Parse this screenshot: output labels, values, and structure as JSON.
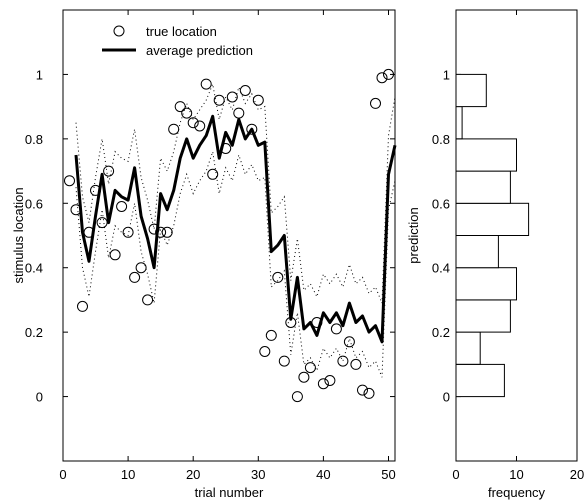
{
  "chart_data": [
    {
      "type": "line",
      "xlabel": "trial number",
      "ylabel": "stimulus location",
      "xlim": [
        0,
        51
      ],
      "ylim": [
        -0.2,
        1.2
      ],
      "xticks": [
        0,
        10,
        20,
        30,
        40,
        50
      ],
      "yticks": [
        0,
        0.2,
        0.4,
        0.6,
        0.8,
        1
      ],
      "grid": false,
      "legend_position": "top-left",
      "series": [
        {
          "name": "true location",
          "style": "open-circle",
          "x": [
            1,
            2,
            3,
            4,
            5,
            6,
            7,
            8,
            9,
            10,
            11,
            12,
            13,
            14,
            15,
            16,
            17,
            18,
            19,
            20,
            21,
            22,
            23,
            24,
            25,
            26,
            27,
            28,
            29,
            30,
            31,
            32,
            33,
            34,
            35,
            36,
            37,
            38,
            39,
            40,
            41,
            42,
            43,
            44,
            45,
            46,
            47,
            48,
            49,
            50
          ],
          "y": [
            0.67,
            0.58,
            0.28,
            0.51,
            0.64,
            0.54,
            0.7,
            0.44,
            0.59,
            0.51,
            0.37,
            0.4,
            0.3,
            0.52,
            0.51,
            0.51,
            0.83,
            0.9,
            0.88,
            0.85,
            0.84,
            0.97,
            0.69,
            0.92,
            0.77,
            0.93,
            0.88,
            0.95,
            0.83,
            0.92,
            0.14,
            0.19,
            0.37,
            0.11,
            0.23,
            0.0,
            0.06,
            0.09,
            0.23,
            0.04,
            0.05,
            0.21,
            0.11,
            0.17,
            0.1,
            0.02,
            0.01,
            0.91,
            0.99,
            1.0
          ]
        },
        {
          "name": "average prediction",
          "style": "thick-line",
          "x": [
            2,
            3,
            4,
            5,
            6,
            7,
            8,
            9,
            10,
            11,
            12,
            13,
            14,
            15,
            16,
            17,
            18,
            19,
            20,
            21,
            22,
            23,
            24,
            25,
            26,
            27,
            28,
            29,
            30,
            31,
            32,
            33,
            34,
            35,
            36,
            37,
            38,
            39,
            40,
            41,
            42,
            43,
            44,
            45,
            46,
            47,
            48,
            49,
            50,
            51
          ],
          "y": [
            0.75,
            0.51,
            0.42,
            0.56,
            0.69,
            0.54,
            0.64,
            0.62,
            0.61,
            0.71,
            0.56,
            0.49,
            0.4,
            0.63,
            0.58,
            0.64,
            0.74,
            0.8,
            0.74,
            0.78,
            0.81,
            0.87,
            0.74,
            0.82,
            0.78,
            0.86,
            0.8,
            0.83,
            0.78,
            0.79,
            0.45,
            0.47,
            0.5,
            0.24,
            0.37,
            0.21,
            0.23,
            0.19,
            0.26,
            0.23,
            0.26,
            0.22,
            0.29,
            0.23,
            0.25,
            0.2,
            0.22,
            0.17,
            0.69,
            0.78
          ]
        },
        {
          "name": "",
          "style": "dotted-band-upper",
          "x": [
            2,
            3,
            4,
            5,
            6,
            7,
            8,
            9,
            10,
            11,
            12,
            13,
            14,
            15,
            16,
            17,
            18,
            19,
            20,
            21,
            22,
            23,
            24,
            25,
            26,
            27,
            28,
            29,
            30,
            31,
            32,
            33,
            34,
            35,
            36,
            37,
            38,
            39,
            40,
            41,
            42,
            43,
            44,
            45,
            46,
            47,
            48,
            49,
            50,
            51
          ],
          "y": [
            0.85,
            0.62,
            0.54,
            0.68,
            0.8,
            0.66,
            0.76,
            0.74,
            0.73,
            0.83,
            0.68,
            0.61,
            0.52,
            0.74,
            0.7,
            0.76,
            0.85,
            0.91,
            0.86,
            0.89,
            0.92,
            0.97,
            0.86,
            0.93,
            0.89,
            0.96,
            0.91,
            0.94,
            0.89,
            0.9,
            0.57,
            0.59,
            0.62,
            0.36,
            0.49,
            0.33,
            0.35,
            0.31,
            0.38,
            0.35,
            0.38,
            0.34,
            0.41,
            0.35,
            0.37,
            0.32,
            0.34,
            0.29,
            0.81,
            0.93
          ]
        },
        {
          "name": "",
          "style": "dotted-band-lower",
          "x": [
            2,
            3,
            4,
            5,
            6,
            7,
            8,
            9,
            10,
            11,
            12,
            13,
            14,
            15,
            16,
            17,
            18,
            19,
            20,
            21,
            22,
            23,
            24,
            25,
            26,
            27,
            28,
            29,
            30,
            31,
            32,
            33,
            34,
            35,
            36,
            37,
            38,
            39,
            40,
            41,
            42,
            43,
            44,
            45,
            46,
            47,
            48,
            49,
            50,
            51
          ],
          "y": [
            0.65,
            0.4,
            0.31,
            0.45,
            0.58,
            0.43,
            0.53,
            0.51,
            0.5,
            0.6,
            0.45,
            0.38,
            0.29,
            0.52,
            0.47,
            0.53,
            0.63,
            0.69,
            0.63,
            0.67,
            0.7,
            0.76,
            0.63,
            0.71,
            0.67,
            0.75,
            0.69,
            0.72,
            0.67,
            0.68,
            0.34,
            0.36,
            0.39,
            0.13,
            0.26,
            0.1,
            0.12,
            0.08,
            0.15,
            0.12,
            0.15,
            0.11,
            0.18,
            0.12,
            0.14,
            0.09,
            0.11,
            0.06,
            0.58,
            0.67
          ]
        }
      ]
    },
    {
      "type": "bar",
      "orientation": "horizontal",
      "xlabel": "frequency",
      "ylabel": "prediction",
      "xlim": [
        0,
        20
      ],
      "ylim": [
        -0.2,
        1.2
      ],
      "xticks": [
        0,
        10,
        20
      ],
      "yticks": [
        0,
        0.2,
        0.4,
        0.6,
        0.8,
        1
      ],
      "grid": false,
      "bin_width": 0.1,
      "bin_centers": [
        0.05,
        0.15,
        0.25,
        0.35,
        0.45,
        0.55,
        0.65,
        0.75,
        0.85,
        0.95
      ],
      "values": [
        8,
        4,
        9,
        10,
        7,
        12,
        9,
        10,
        1,
        5
      ]
    }
  ]
}
